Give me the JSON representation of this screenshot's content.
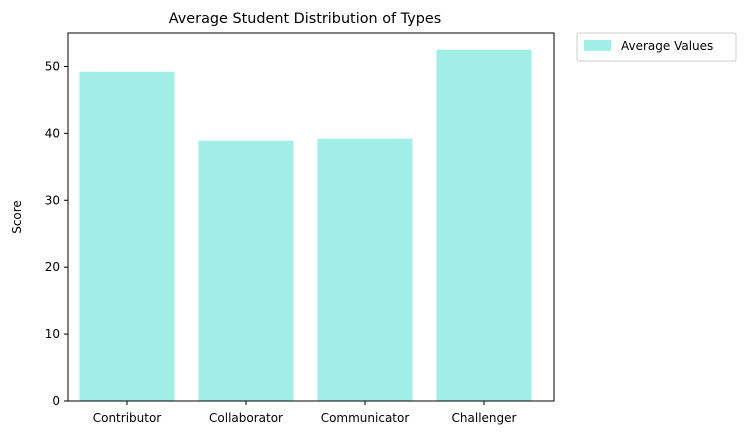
{
  "chart_data": {
    "type": "bar",
    "title": "Average Student Distribution of Types",
    "xlabel": "",
    "ylabel": "Score",
    "categories": [
      "Contributor",
      "Collaborator",
      "Communicator",
      "Challenger"
    ],
    "series": [
      {
        "name": "Average Values",
        "values": [
          49.2,
          38.9,
          39.2,
          52.5
        ],
        "color": "#a0eee6"
      }
    ],
    "ylim": [
      0,
      55
    ],
    "yticks": [
      0,
      10,
      20,
      30,
      40,
      50
    ],
    "grid": false,
    "legend_position": "outside-top-right"
  }
}
